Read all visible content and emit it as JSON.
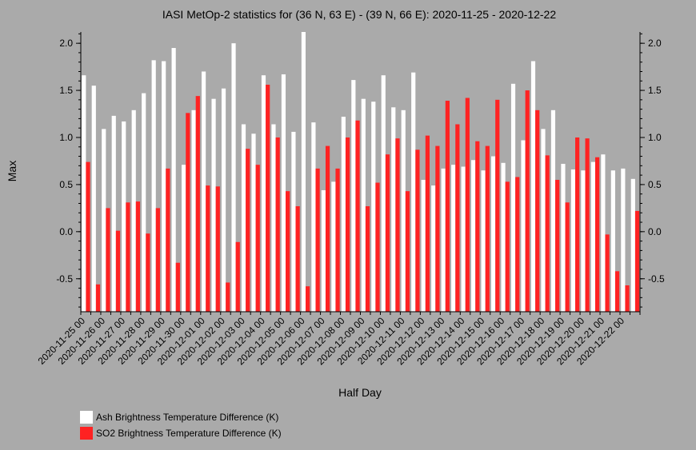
{
  "chart_data": {
    "type": "bar",
    "title": "IASI MetOp-2 statistics for (36 N, 63 E) - (39 N, 66 E): 2020-11-25 - 2020-12-22",
    "xlabel": "Half Day",
    "ylabel": "Max",
    "ylim": [
      -0.85,
      2.12
    ],
    "yticks": [
      -0.5,
      0.0,
      0.5,
      1.0,
      1.5,
      2.0
    ],
    "ytick_labels": [
      "-0.5",
      "0.0",
      "0.5",
      "1.0",
      "1.5",
      "2.0"
    ],
    "x_tick_labels": [
      "2020-11-25 00",
      "2020-11-26 00",
      "2020-11-27 00",
      "2020-11-28 00",
      "2020-11-29 00",
      "2020-11-30 00",
      "2020-12-01 00",
      "2020-12-02 00",
      "2020-12-03 00",
      "2020-12-04 00",
      "2020-12-05 00",
      "2020-12-06 00",
      "2020-12-07 00",
      "2020-12-08 00",
      "2020-12-09 00",
      "2020-12-10 00",
      "2020-12-11 00",
      "2020-12-12 00",
      "2020-12-13 00",
      "2020-12-14 00",
      "2020-12-15 00",
      "2020-12-16 00",
      "2020-12-17 00",
      "2020-12-18 00",
      "2020-12-19 00",
      "2020-12-20 00",
      "2020-12-21 00",
      "2020-12-22 00"
    ],
    "grid": false,
    "legend_position": "bottom-left",
    "series": [
      {
        "name": "Ash Brightness Temperature Difference (K)",
        "color": "#ffffff",
        "values": [
          1.66,
          1.55,
          1.09,
          1.23,
          1.17,
          1.29,
          1.47,
          1.82,
          1.81,
          1.95,
          0.71,
          1.29,
          1.7,
          1.41,
          1.52,
          2.0,
          1.14,
          1.04,
          1.66,
          1.14,
          1.67,
          1.06,
          2.12,
          1.16,
          0.44,
          0.53,
          1.22,
          1.61,
          1.41,
          1.38,
          1.66,
          1.32,
          1.29,
          1.69,
          0.55,
          0.49,
          0.67,
          0.71,
          0.69,
          0.76,
          0.65,
          0.8,
          0.73,
          1.57,
          0.97,
          1.81,
          1.09,
          1.29,
          0.72,
          0.66,
          0.65,
          0.74,
          0.82,
          0.65,
          0.67,
          0.56
        ]
      },
      {
        "name": "SO2 Brightness Temperature Difference (K)",
        "color": "#ff2222",
        "values": [
          0.74,
          -0.56,
          0.25,
          0.01,
          0.31,
          0.32,
          -0.02,
          0.25,
          0.67,
          -0.33,
          1.26,
          1.44,
          0.49,
          0.48,
          -0.54,
          -0.11,
          0.88,
          0.71,
          1.56,
          1.0,
          0.43,
          0.27,
          -0.58,
          0.67,
          0.91,
          0.67,
          1.0,
          1.18,
          0.27,
          0.52,
          0.82,
          0.99,
          0.43,
          0.87,
          1.02,
          0.91,
          1.39,
          1.14,
          1.42,
          0.96,
          0.91,
          1.4,
          0.53,
          0.58,
          1.5,
          1.29,
          0.81,
          0.55,
          0.31,
          1.0,
          0.99,
          0.79,
          -0.03,
          -0.42,
          -0.57,
          0.22
        ]
      }
    ]
  }
}
